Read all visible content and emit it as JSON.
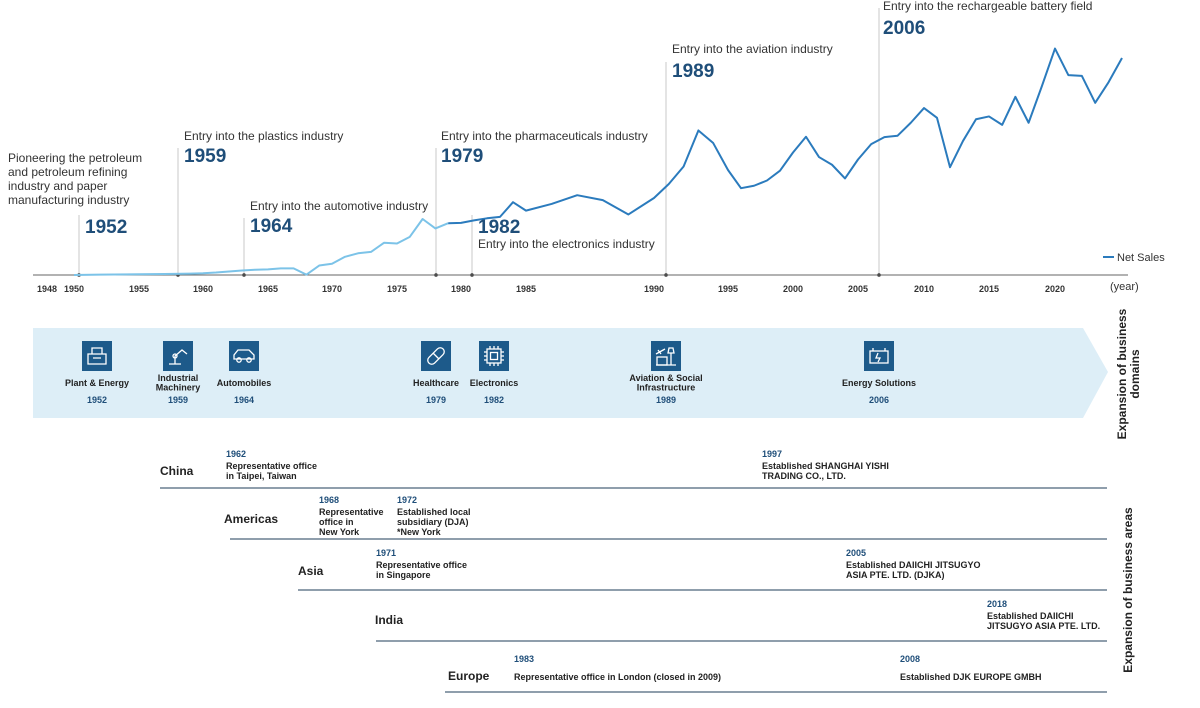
{
  "chart_data": {
    "type": "line",
    "legend": "right",
    "series": [
      {
        "name": "Net Sales",
        "color_old": "#7cc3e8",
        "color_new": "#2b7bbd",
        "x": [
          1950,
          1952,
          1955,
          1957,
          1959,
          1960,
          1961,
          1962,
          1963,
          1964,
          1965,
          1966,
          1967,
          1968,
          1969,
          1970,
          1971,
          1972,
          1973,
          1974,
          1975,
          1976,
          1977,
          1978,
          1979,
          1980,
          1981,
          1982,
          1983,
          1984,
          1985,
          1986,
          1987,
          1988,
          1989,
          1990,
          1991,
          1992,
          1993,
          1994,
          1995,
          1996,
          1997,
          1998,
          1999,
          2000,
          2001,
          2002,
          2003,
          2004,
          2005,
          2006,
          2007,
          2008,
          2009,
          2010,
          2011,
          2012,
          2013,
          2014,
          2015,
          2016,
          2017,
          2018,
          2019,
          2020,
          2021,
          2022,
          2023,
          2024,
          2025
        ],
        "y": [
          0,
          0.1,
          0.2,
          0.3,
          0.4,
          0.5,
          0.7,
          1.0,
          1.3,
          1.5,
          1.6,
          1.9,
          1.9,
          0.1,
          2.7,
          3.2,
          5.2,
          6.2,
          6.6,
          9.2,
          9.0,
          10.9,
          16.0,
          13.3,
          14.8,
          14.9,
          15.6,
          16.2,
          16.6,
          20.8,
          18.4,
          20.3,
          22.8,
          21.4,
          17.3,
          22.0,
          26.0,
          31.0,
          41.3,
          37.7,
          30.0,
          24.8,
          25.5,
          27.0,
          29.8,
          35.0,
          39.5,
          33.7,
          31.5,
          27.6,
          33.0,
          37.4,
          39.4,
          39.8,
          43.5,
          47.7,
          44.9,
          30.8,
          38.3,
          44.5,
          45.3,
          42.9,
          50.9,
          43.5,
          53.9,
          64.7,
          57.1,
          56.9,
          49.2,
          55.1,
          62.0
        ]
      }
    ],
    "x_ticks": [
      "1948",
      "1950",
      "1955",
      "1960",
      "1965",
      "1970",
      "1975",
      "1980",
      "1985",
      "1990",
      "1995",
      "2000",
      "2005",
      "2010",
      "2015",
      "2020"
    ],
    "x_unit": "(year)",
    "milestones": [
      {
        "year": "1952",
        "text": [
          "Pioneering the petroleum",
          "and petroleum refining",
          "industry and paper",
          "manufacturing industry"
        ]
      },
      {
        "year": "1959",
        "text": [
          "Entry into the plastics industry"
        ]
      },
      {
        "year": "1964",
        "text": [
          "Entry into the automotive industry"
        ]
      },
      {
        "year": "1979",
        "text": [
          "Entry into the pharmaceuticals industry"
        ]
      },
      {
        "year": "1982",
        "text": [
          "Entry into the electronics industry"
        ]
      },
      {
        "year": "1989",
        "text": [
          "Entry into the aviation industry"
        ]
      },
      {
        "year": "2006",
        "text": [
          "Entry into the rechargeable battery field"
        ]
      }
    ]
  },
  "domains": {
    "side_label": [
      "Expansion of business",
      "domains"
    ],
    "arrow_color": "#ddeef7",
    "items": [
      {
        "icon": "plant-icon",
        "label": [
          "Plant & Energy"
        ],
        "year": "1952"
      },
      {
        "icon": "robot-arm-icon",
        "label": [
          "Industrial",
          "Machinery"
        ],
        "year": "1959"
      },
      {
        "icon": "car-icon",
        "label": [
          "Automobiles"
        ],
        "year": "1964"
      },
      {
        "icon": "pill-icon",
        "label": [
          "Healthcare"
        ],
        "year": "1979"
      },
      {
        "icon": "chip-icon",
        "label": [
          "Electronics"
        ],
        "year": "1982"
      },
      {
        "icon": "airport-icon",
        "label": [
          "Aviation & Social",
          "Infrastructure"
        ],
        "year": "1989"
      },
      {
        "icon": "battery-icon",
        "label": [
          "Energy Solutions"
        ],
        "year": "2006"
      }
    ]
  },
  "areas": {
    "side_label": "Expansion of business areas",
    "rows": [
      {
        "name": "China",
        "events": [
          {
            "year": "1962",
            "text": [
              "Representative office",
              "in Taipei, Taiwan"
            ]
          },
          {
            "year": "1997",
            "text": [
              "Established SHANGHAI YISHI",
              "TRADING CO., LTD."
            ]
          }
        ]
      },
      {
        "name": "Americas",
        "events": [
          {
            "year": "1968",
            "text": [
              "Representative",
              "office in",
              "New York"
            ]
          },
          {
            "year": "1972",
            "text": [
              "Established local",
              "subsidiary (DJA)",
              "*New York"
            ]
          }
        ]
      },
      {
        "name": "Asia",
        "events": [
          {
            "year": "1971",
            "text": [
              "Representative office",
              " in Singapore"
            ]
          },
          {
            "year": "2005",
            "text": [
              "Established DAIICHI JITSUGYO",
              "ASIA PTE. LTD. (DJKA)"
            ]
          }
        ]
      },
      {
        "name": "India",
        "events": [
          {
            "year": "2018",
            "text": [
              "Established DAIICHI",
              "JITSUGYO ASIA PTE. LTD."
            ]
          }
        ]
      },
      {
        "name": "Europe",
        "events": [
          {
            "year": "1983",
            "text": [
              "Representative office in London (closed in 2009)"
            ]
          },
          {
            "year": "2008",
            "text": [
              "Established DJK EUROPE GMBH"
            ]
          }
        ]
      }
    ]
  }
}
